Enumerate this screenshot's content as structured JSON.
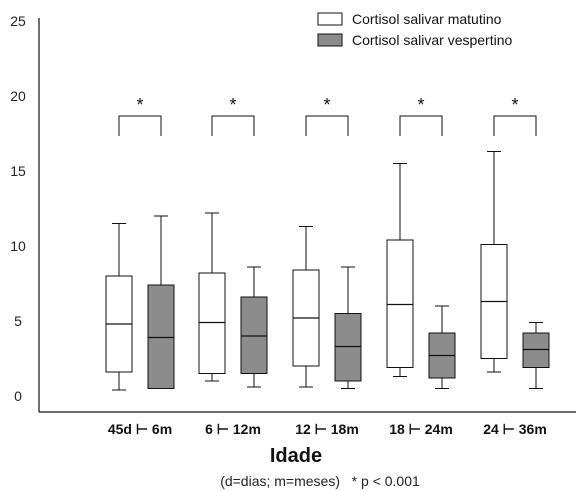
{
  "chart_data": {
    "type": "boxplot",
    "xlabel": "Idade",
    "ylabel": "",
    "ylim": [
      0,
      25
    ],
    "yticks": [
      0,
      5,
      10,
      15,
      20,
      25
    ],
    "grid": false,
    "legend_position": "top-right",
    "categories": [
      "45d ⊢ 6m",
      "6 ⊢ 12m",
      "12 ⊢ 18m",
      "18 ⊢ 24m",
      "24 ⊢ 36m"
    ],
    "series": [
      {
        "name": "Cortisol salivar matutino",
        "color": "#ffffff",
        "boxes": [
          {
            "min": 0.4,
            "q1": 1.6,
            "median": 4.8,
            "q3": 8.0,
            "max": 11.5
          },
          {
            "min": 1.0,
            "q1": 1.5,
            "median": 4.9,
            "q3": 8.2,
            "max": 12.2
          },
          {
            "min": 0.6,
            "q1": 2.0,
            "median": 5.2,
            "q3": 8.4,
            "max": 11.3
          },
          {
            "min": 1.3,
            "q1": 1.9,
            "median": 6.1,
            "q3": 10.4,
            "max": 15.5
          },
          {
            "min": 1.6,
            "q1": 2.5,
            "median": 6.3,
            "q3": 10.1,
            "max": 16.3
          }
        ]
      },
      {
        "name": "Cortisol salivar vespertino",
        "color": "#8c8c8c",
        "boxes": [
          {
            "min": 0.5,
            "q1": 0.5,
            "median": 3.9,
            "q3": 7.4,
            "max": 12.0
          },
          {
            "min": 0.6,
            "q1": 1.5,
            "median": 4.0,
            "q3": 6.6,
            "max": 8.6
          },
          {
            "min": 0.5,
            "q1": 1.0,
            "median": 3.3,
            "q3": 5.5,
            "max": 8.6
          },
          {
            "min": 0.5,
            "q1": 1.2,
            "median": 2.7,
            "q3": 4.2,
            "max": 6.0
          },
          {
            "min": 0.5,
            "q1": 1.9,
            "median": 3.1,
            "q3": 4.2,
            "max": 4.9
          }
        ]
      }
    ],
    "significance": {
      "marker": "*",
      "label_above_each_pair": true
    },
    "caption": "(d=dias; m=meses)   * p < 0.001"
  }
}
